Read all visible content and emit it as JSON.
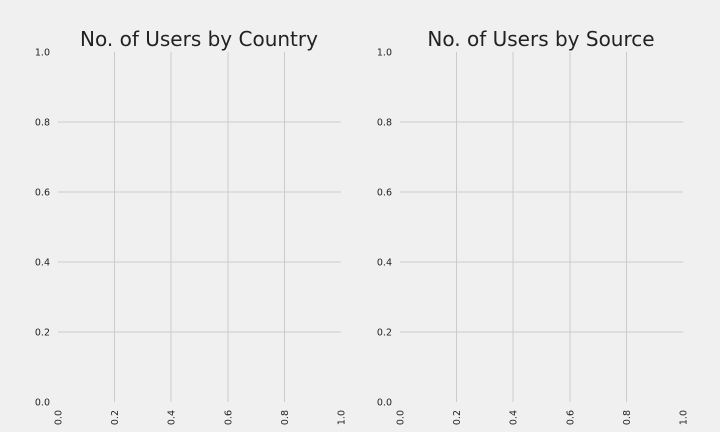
{
  "chart_data": [
    {
      "type": "bar",
      "title": "No. of Users by Country",
      "xlabel": "",
      "ylabel": "",
      "xlim": [
        0,
        1
      ],
      "ylim": [
        0,
        1
      ],
      "x_ticks": [
        "0.0",
        "0.2",
        "0.4",
        "0.6",
        "0.8",
        "1.0"
      ],
      "y_ticks": [
        "0.0",
        "0.2",
        "0.4",
        "0.6",
        "0.8",
        "1.0"
      ],
      "x_tick_rotation": "vertical",
      "grid": true,
      "categories": [],
      "values": []
    },
    {
      "type": "bar",
      "title": "No. of Users by Source",
      "xlabel": "",
      "ylabel": "",
      "xlim": [
        0,
        1
      ],
      "ylim": [
        0,
        1
      ],
      "x_ticks": [
        "0.0",
        "0.2",
        "0.4",
        "0.6",
        "0.8",
        "1.0"
      ],
      "y_ticks": [
        "0.0",
        "0.2",
        "0.4",
        "0.6",
        "0.8",
        "1.0"
      ],
      "x_tick_rotation": "vertical",
      "grid": true,
      "categories": [],
      "values": []
    }
  ],
  "colors": {
    "background": "#f0f0f0",
    "grid": "#cbcbcb",
    "text": "#222222"
  }
}
